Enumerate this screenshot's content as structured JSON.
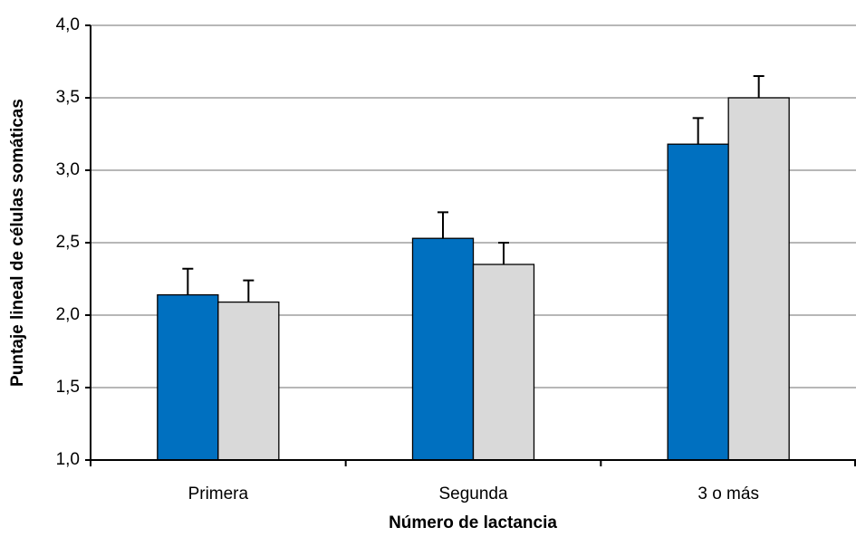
{
  "chart_data": {
    "type": "bar",
    "y_label": "Puntaje lineal de células somáticas",
    "x_label": "Número de lactancia",
    "categories": [
      "Primera",
      "Segunda",
      "3 o más"
    ],
    "series": [
      {
        "color": "#0070c0",
        "values": [
          2.14,
          2.53,
          3.18
        ],
        "errors": [
          0.18,
          0.18,
          0.18
        ]
      },
      {
        "color": "#d9d9d9",
        "values": [
          2.09,
          2.35,
          3.5
        ],
        "errors": [
          0.15,
          0.15,
          0.15
        ]
      }
    ],
    "ylim": [
      1.0,
      4.0
    ],
    "yticks": [
      {
        "value": 1.0,
        "label": "1,0"
      },
      {
        "value": 1.5,
        "label": "1,5"
      },
      {
        "value": 2.0,
        "label": "2,0"
      },
      {
        "value": 2.5,
        "label": "2,5"
      },
      {
        "value": 3.0,
        "label": "3,0"
      },
      {
        "value": 3.5,
        "label": "3,5"
      },
      {
        "value": 4.0,
        "label": "4,0"
      }
    ],
    "grid": true
  }
}
